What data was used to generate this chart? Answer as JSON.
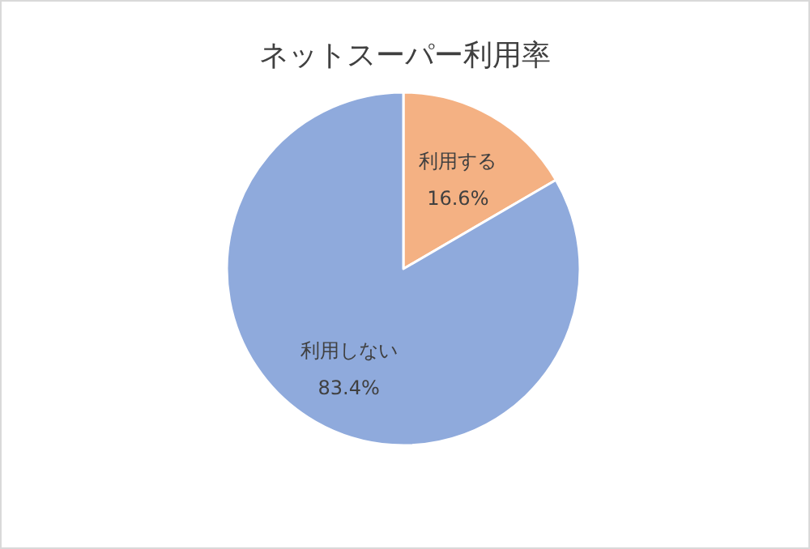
{
  "chart_data": {
    "type": "pie",
    "title": "ネットスーパー利用率",
    "categories": [
      "利用する",
      "利用しない"
    ],
    "values": [
      16.6,
      83.4
    ],
    "value_labels": [
      "16.6%",
      "83.4%"
    ],
    "colors": [
      "#f4b183",
      "#8faadc"
    ]
  }
}
